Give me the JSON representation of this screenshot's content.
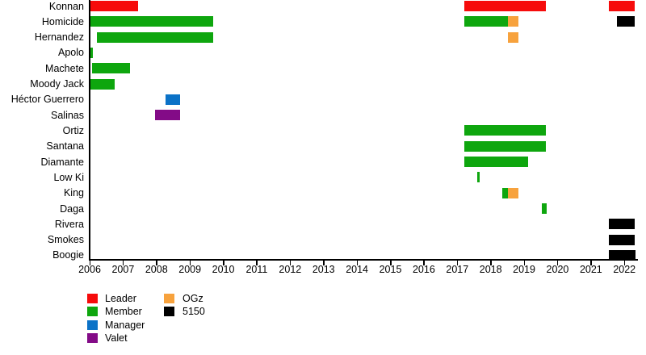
{
  "chart_data": {
    "type": "bar",
    "subtype": "horizontal-gantt-timeline",
    "title": "",
    "xlabel": "",
    "ylabel": "",
    "x_axis": {
      "min": 2006,
      "max": 2022.4,
      "tick_labels": [
        "2006",
        "2007",
        "2008",
        "2009",
        "2010",
        "2011",
        "2012",
        "2013",
        "2014",
        "2015",
        "2016",
        "2017",
        "2018",
        "2019",
        "2020",
        "2021",
        "2022"
      ]
    },
    "grid": false,
    "legend_position": "bottom-left",
    "roles": {
      "Leader": "#f60b0b",
      "Member": "#0ea60e",
      "Manager": "#0b72c7",
      "Valet": "#830b87",
      "OGz": "#f7a23d",
      "5150": "#000000"
    },
    "legend_items": [
      {
        "label": "Leader",
        "role": "Leader",
        "col": 0,
        "row": 0
      },
      {
        "label": "Member",
        "role": "Member",
        "col": 0,
        "row": 1
      },
      {
        "label": "Manager",
        "role": "Manager",
        "col": 0,
        "row": 2
      },
      {
        "label": "Valet",
        "role": "Valet",
        "col": 0,
        "row": 3
      },
      {
        "label": "OGz",
        "role": "OGz",
        "col": 1,
        "row": 0
      },
      {
        "label": "5150",
        "role": "5150",
        "col": 1,
        "row": 1
      }
    ],
    "rows": [
      {
        "label": "Konnan",
        "segments": [
          {
            "role": "Leader",
            "start": 2006.0,
            "end": 2007.45
          },
          {
            "role": "Leader",
            "start": 2017.2,
            "end": 2019.66
          },
          {
            "role": "Leader",
            "start": 2021.53,
            "end": 2022.31
          }
        ]
      },
      {
        "label": "Homicide",
        "segments": [
          {
            "role": "Member",
            "start": 2006.0,
            "end": 2009.7
          },
          {
            "role": "Member",
            "start": 2017.2,
            "end": 2018.51
          },
          {
            "role": "OGz",
            "start": 2018.51,
            "end": 2018.82
          },
          {
            "role": "5150",
            "start": 2021.78,
            "end": 2022.31
          }
        ]
      },
      {
        "label": "Hernandez",
        "segments": [
          {
            "role": "Member",
            "start": 2006.22,
            "end": 2009.69
          },
          {
            "role": "OGz",
            "start": 2018.51,
            "end": 2018.82
          }
        ]
      },
      {
        "label": "Apolo",
        "segments": [
          {
            "role": "Member",
            "start": 2006.0,
            "end": 2006.1
          }
        ]
      },
      {
        "label": "Machete",
        "segments": [
          {
            "role": "Member",
            "start": 2006.07,
            "end": 2007.21
          }
        ]
      },
      {
        "label": "Moody Jack",
        "segments": [
          {
            "role": "Member",
            "start": 2006.0,
            "end": 2006.75
          }
        ]
      },
      {
        "label": "Héctor Guerrero",
        "segments": [
          {
            "role": "Manager",
            "start": 2008.27,
            "end": 2008.71
          }
        ]
      },
      {
        "label": "Salinas",
        "segments": [
          {
            "role": "Valet",
            "start": 2007.96,
            "end": 2008.7
          }
        ]
      },
      {
        "label": "Ortiz",
        "segments": [
          {
            "role": "Member",
            "start": 2017.2,
            "end": 2019.66
          }
        ]
      },
      {
        "label": "Santana",
        "segments": [
          {
            "role": "Member",
            "start": 2017.2,
            "end": 2019.66
          }
        ]
      },
      {
        "label": "Diamante",
        "segments": [
          {
            "role": "Member",
            "start": 2017.2,
            "end": 2019.13
          }
        ]
      },
      {
        "label": "Low Ki",
        "segments": [
          {
            "role": "Member",
            "start": 2017.59,
            "end": 2017.67
          }
        ]
      },
      {
        "label": "King",
        "segments": [
          {
            "role": "Member",
            "start": 2018.34,
            "end": 2018.52
          },
          {
            "role": "OGz",
            "start": 2018.52,
            "end": 2018.82
          }
        ]
      },
      {
        "label": "Daga",
        "segments": [
          {
            "role": "Member",
            "start": 2019.54,
            "end": 2019.67
          }
        ]
      },
      {
        "label": "Rivera",
        "segments": [
          {
            "role": "5150",
            "start": 2021.53,
            "end": 2022.31
          }
        ]
      },
      {
        "label": "Smokes",
        "segments": [
          {
            "role": "5150",
            "start": 2021.53,
            "end": 2022.31
          }
        ]
      },
      {
        "label": "Boogie",
        "segments": [
          {
            "role": "5150",
            "start": 2021.53,
            "end": 2022.33
          }
        ]
      }
    ]
  }
}
